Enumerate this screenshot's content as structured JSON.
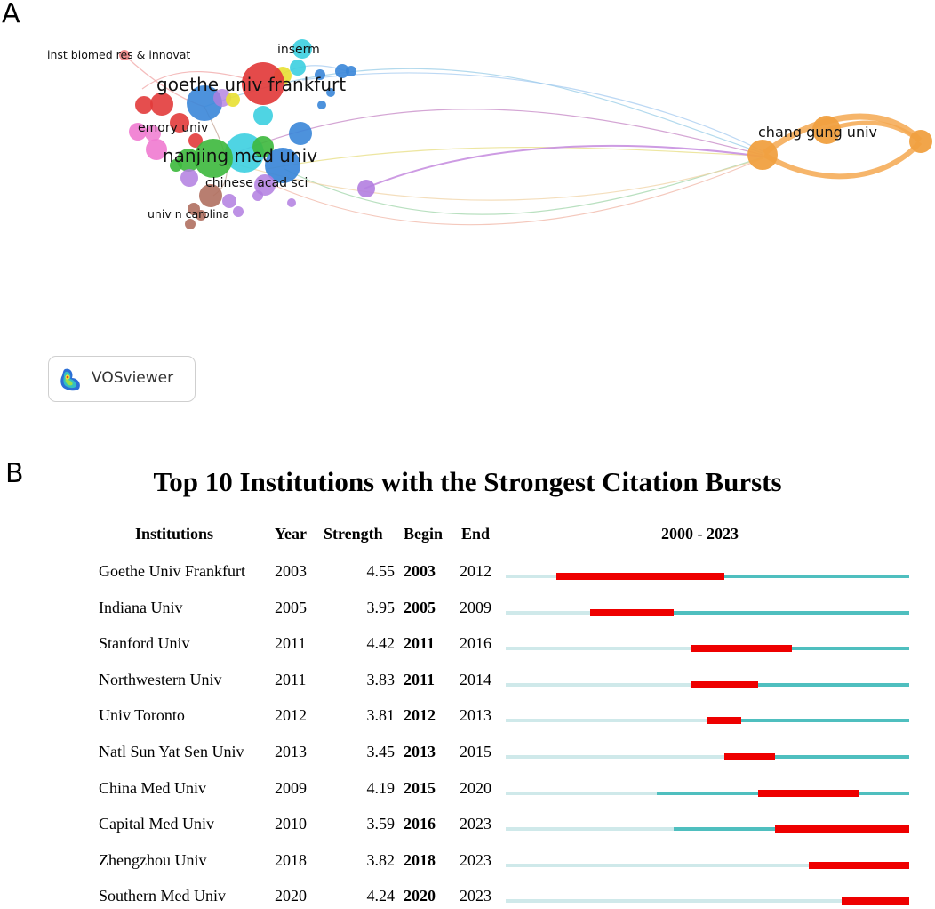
{
  "panel_a": {
    "letter": "A",
    "badge_text": "VOSviewer",
    "logo_icon": "vosviewer-logo-icon",
    "network": {
      "clusters": [
        {
          "name": "red",
          "color": "#e23b3b"
        },
        {
          "name": "green",
          "color": "#3cb83c"
        },
        {
          "name": "blue",
          "color": "#3a86d8"
        },
        {
          "name": "yellow",
          "color": "#e8e032"
        },
        {
          "name": "purple",
          "color": "#b27ee0"
        },
        {
          "name": "cyan",
          "color": "#3ccfe0"
        },
        {
          "name": "orange",
          "color": "#f0a040"
        },
        {
          "name": "brown",
          "color": "#b07060"
        },
        {
          "name": "pink",
          "color": "#f07ad0"
        }
      ],
      "node_labels": [
        "inst biomed res & innovat",
        "inserm",
        "goethe univ frankfurt",
        "emory univ",
        "nanjing med univ",
        "chinese acad sci",
        "univ n carolina",
        "chang gung univ"
      ]
    }
  },
  "panel_b": {
    "letter": "B",
    "title": "Top 10 Institutions with the Strongest Citation Bursts",
    "headers": {
      "institutions": "Institutions",
      "year": "Year",
      "strength": "Strength",
      "begin": "Begin",
      "end": "End",
      "range": "2000 - 2023"
    },
    "colors": {
      "pre": "#cfe9ea",
      "active": "#4fbfbf",
      "burst": "#ee0000"
    }
  },
  "chart_data": {
    "type": "table",
    "title": "Top 10 Institutions with the Strongest Citation Bursts",
    "columns": [
      "Institutions",
      "Year",
      "Strength",
      "Begin",
      "End"
    ],
    "timeline": {
      "start": 2000,
      "end": 2023
    },
    "rows": [
      {
        "institution": "Goethe Univ Frankfurt",
        "year": 2003,
        "strength": "4.55",
        "begin": 2003,
        "end": 2012
      },
      {
        "institution": "Indiana Univ",
        "year": 2005,
        "strength": "3.95",
        "begin": 2005,
        "end": 2009
      },
      {
        "institution": "Stanford Univ",
        "year": 2011,
        "strength": "4.42",
        "begin": 2011,
        "end": 2016
      },
      {
        "institution": "Northwestern Univ",
        "year": 2011,
        "strength": "3.83",
        "begin": 2011,
        "end": 2014
      },
      {
        "institution": "Univ Toronto",
        "year": 2012,
        "strength": "3.81",
        "begin": 2012,
        "end": 2013
      },
      {
        "institution": "Natl Sun Yat Sen Univ",
        "year": 2013,
        "strength": "3.45",
        "begin": 2013,
        "end": 2015
      },
      {
        "institution": "China Med Univ",
        "year": 2009,
        "strength": "4.19",
        "begin": 2015,
        "end": 2020
      },
      {
        "institution": "Capital Med Univ",
        "year": 2010,
        "strength": "3.59",
        "begin": 2016,
        "end": 2023
      },
      {
        "institution": "Zhengzhou Univ",
        "year": 2018,
        "strength": "3.82",
        "begin": 2018,
        "end": 2023
      },
      {
        "institution": "Southern Med Univ",
        "year": 2020,
        "strength": "4.24",
        "begin": 2020,
        "end": 2023
      }
    ]
  }
}
